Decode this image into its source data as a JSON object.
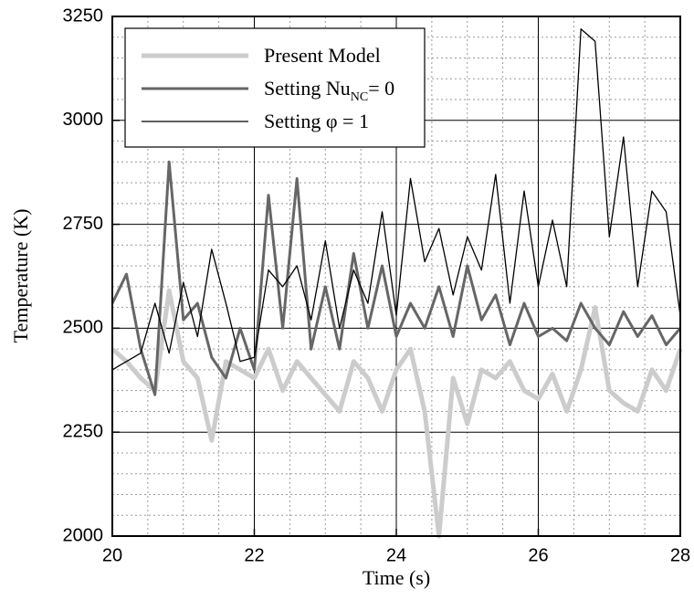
{
  "chart_data": {
    "type": "line",
    "x_label": "Time (s)",
    "y_label": "Temperature (K)",
    "xlim": [
      20,
      28
    ],
    "xticks": [
      20,
      22,
      24,
      26,
      28
    ],
    "ylim": [
      2000,
      3250
    ],
    "yticks": [
      2000,
      2250,
      2500,
      2750,
      3000,
      3250
    ],
    "grid": true,
    "minor_grid": {
      "x": 4,
      "y": 5
    },
    "legend": "upper left",
    "x": [
      20,
      20.2,
      20.4,
      20.6,
      20.8,
      21,
      21.2,
      21.4,
      21.6,
      21.8,
      22,
      22.2,
      22.4,
      22.6,
      22.8,
      23,
      23.2,
      23.4,
      23.6,
      23.8,
      24,
      24.2,
      24.4,
      24.6,
      24.8,
      25,
      25.2,
      25.4,
      25.6,
      25.8,
      26,
      26.2,
      26.4,
      26.6,
      26.8,
      27,
      27.2,
      27.4,
      27.6,
      27.8,
      28
    ],
    "series": [
      {
        "name": "Present Model",
        "color": "#cccccc",
        "width": 5,
        "values": [
          2450,
          2420,
          2380,
          2350,
          2590,
          2420,
          2380,
          2230,
          2420,
          2400,
          2380,
          2450,
          2350,
          2420,
          2380,
          2340,
          2300,
          2420,
          2380,
          2300,
          2400,
          2450,
          2300,
          2000,
          2380,
          2270,
          2400,
          2380,
          2420,
          2350,
          2330,
          2390,
          2300,
          2400,
          2550,
          2350,
          2320,
          2300,
          2400,
          2350,
          2450
        ]
      },
      {
        "name": "Setting Nu",
        "name_sub": "NC",
        "name_tail": "= 0",
        "color": "#666666",
        "width": 3,
        "values": [
          2560,
          2630,
          2450,
          2340,
          2900,
          2520,
          2560,
          2430,
          2380,
          2500,
          2400,
          2820,
          2500,
          2860,
          2450,
          2600,
          2450,
          2680,
          2500,
          2650,
          2480,
          2560,
          2500,
          2600,
          2480,
          2650,
          2520,
          2580,
          2460,
          2560,
          2480,
          2500,
          2470,
          2560,
          2500,
          2460,
          2540,
          2480,
          2530,
          2460,
          2500
        ]
      },
      {
        "name": "Setting φ = 1",
        "color": "#000000",
        "width": 1.3,
        "values": [
          2400,
          2420,
          2440,
          2560,
          2440,
          2610,
          2480,
          2690,
          2560,
          2420,
          2430,
          2640,
          2600,
          2650,
          2520,
          2710,
          2500,
          2640,
          2560,
          2780,
          2530,
          2860,
          2660,
          2740,
          2580,
          2720,
          2640,
          2870,
          2560,
          2830,
          2600,
          2760,
          2600,
          3220,
          3190,
          2720,
          2960,
          2600,
          2830,
          2780,
          2530
        ]
      }
    ]
  }
}
